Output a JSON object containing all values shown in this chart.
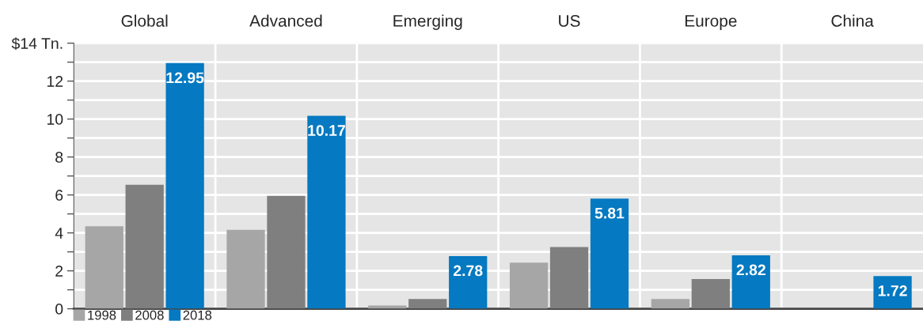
{
  "chart_data": {
    "type": "bar",
    "categories": [
      "Global",
      "Advanced",
      "Emerging",
      "US",
      "Europe",
      "China"
    ],
    "series": [
      {
        "name": "1998",
        "color": "#a6a6a6",
        "values": [
          4.35,
          4.16,
          0.17,
          2.43,
          0.51,
          null
        ]
      },
      {
        "name": "2008",
        "color": "#7f7f7f",
        "values": [
          6.54,
          5.95,
          0.51,
          3.25,
          1.57,
          null
        ]
      },
      {
        "name": "2018",
        "color": "#0579c1",
        "values": [
          12.95,
          10.17,
          2.78,
          5.81,
          2.82,
          1.72
        ],
        "value_labels": [
          "12.95",
          "10.17",
          "2.78",
          "5.81",
          "2.82",
          "1.72"
        ]
      }
    ],
    "ylim": [
      0,
      14
    ],
    "yticks": [
      0,
      {
        "value": 1,
        "label": null
      },
      2,
      {
        "value": 3,
        "label": null
      },
      4,
      {
        "value": 5,
        "label": null
      },
      6,
      {
        "value": 7,
        "label": null
      },
      8,
      {
        "value": 9,
        "label": null
      },
      10,
      {
        "value": 11,
        "label": null
      },
      12,
      {
        "value": 13,
        "label": null
      },
      {
        "value": 14,
        "label": "$14 Tn."
      }
    ],
    "grid": true,
    "legend": "bottom left"
  }
}
